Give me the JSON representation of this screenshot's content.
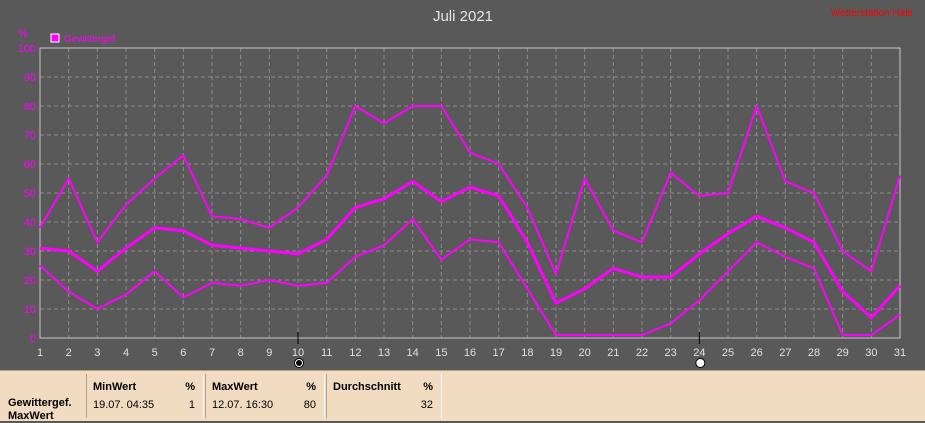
{
  "chart_data": {
    "type": "line",
    "title": "Juli 2021",
    "watermark": "Wetterstation Hale",
    "ylabel": "%",
    "ylim": [
      0,
      100
    ],
    "yticks": [
      0,
      10,
      20,
      30,
      40,
      50,
      60,
      70,
      80,
      90,
      100
    ],
    "x": [
      1,
      2,
      3,
      4,
      5,
      6,
      7,
      8,
      9,
      10,
      11,
      12,
      13,
      14,
      15,
      16,
      17,
      18,
      19,
      20,
      21,
      22,
      23,
      24,
      25,
      26,
      27,
      28,
      29,
      30,
      31
    ],
    "grid": true,
    "legend": {
      "label": "Gewittergef.",
      "position": "top-left",
      "color": "#ff00ff"
    },
    "markers": [
      {
        "x": 10,
        "symbol": "new-moon"
      },
      {
        "x": 24,
        "symbol": "full-moon"
      }
    ],
    "series": [
      {
        "role": "max",
        "values": [
          38,
          55,
          33,
          46,
          55,
          63,
          42,
          41,
          38,
          45,
          56,
          80,
          74,
          80,
          80,
          64,
          60,
          45,
          22,
          55,
          37,
          33,
          57,
          49,
          50,
          80,
          54,
          50,
          30,
          23,
          56
        ]
      },
      {
        "role": "avg",
        "values": [
          31,
          30,
          23,
          31,
          38,
          37,
          32,
          31,
          30,
          29,
          34,
          45,
          48,
          54,
          47,
          52,
          49,
          33,
          12,
          17,
          24,
          21,
          21,
          29,
          36,
          42,
          38,
          33,
          16,
          7,
          18
        ]
      },
      {
        "role": "min",
        "values": [
          25,
          16,
          10,
          15,
          23,
          14,
          19,
          18,
          20,
          18,
          19,
          28,
          32,
          41,
          27,
          34,
          33,
          17,
          1,
          1,
          1,
          1,
          5,
          13,
          23,
          33,
          28,
          24,
          1,
          1,
          8
        ]
      }
    ],
    "colors": {
      "background": "#595959",
      "plot": "#595959",
      "grid": "#8c8c8c",
      "axis": "#c8c8c8",
      "line": "#ff00ff",
      "title": "#e6e6e6",
      "watermark": "#ff0000"
    }
  },
  "summary": {
    "row_label": "Gewittergef.",
    "row_label_2": "MaxWert",
    "columns": [
      {
        "header": "MinWert",
        "unit": "%",
        "time": "19.07.  04:35",
        "value": "1"
      },
      {
        "header": "MaxWert",
        "unit": "%",
        "time": "12.07.  16:30",
        "value": "80"
      },
      {
        "header": "Durchschnitt",
        "unit": "%",
        "time": "",
        "value": "32"
      }
    ]
  }
}
